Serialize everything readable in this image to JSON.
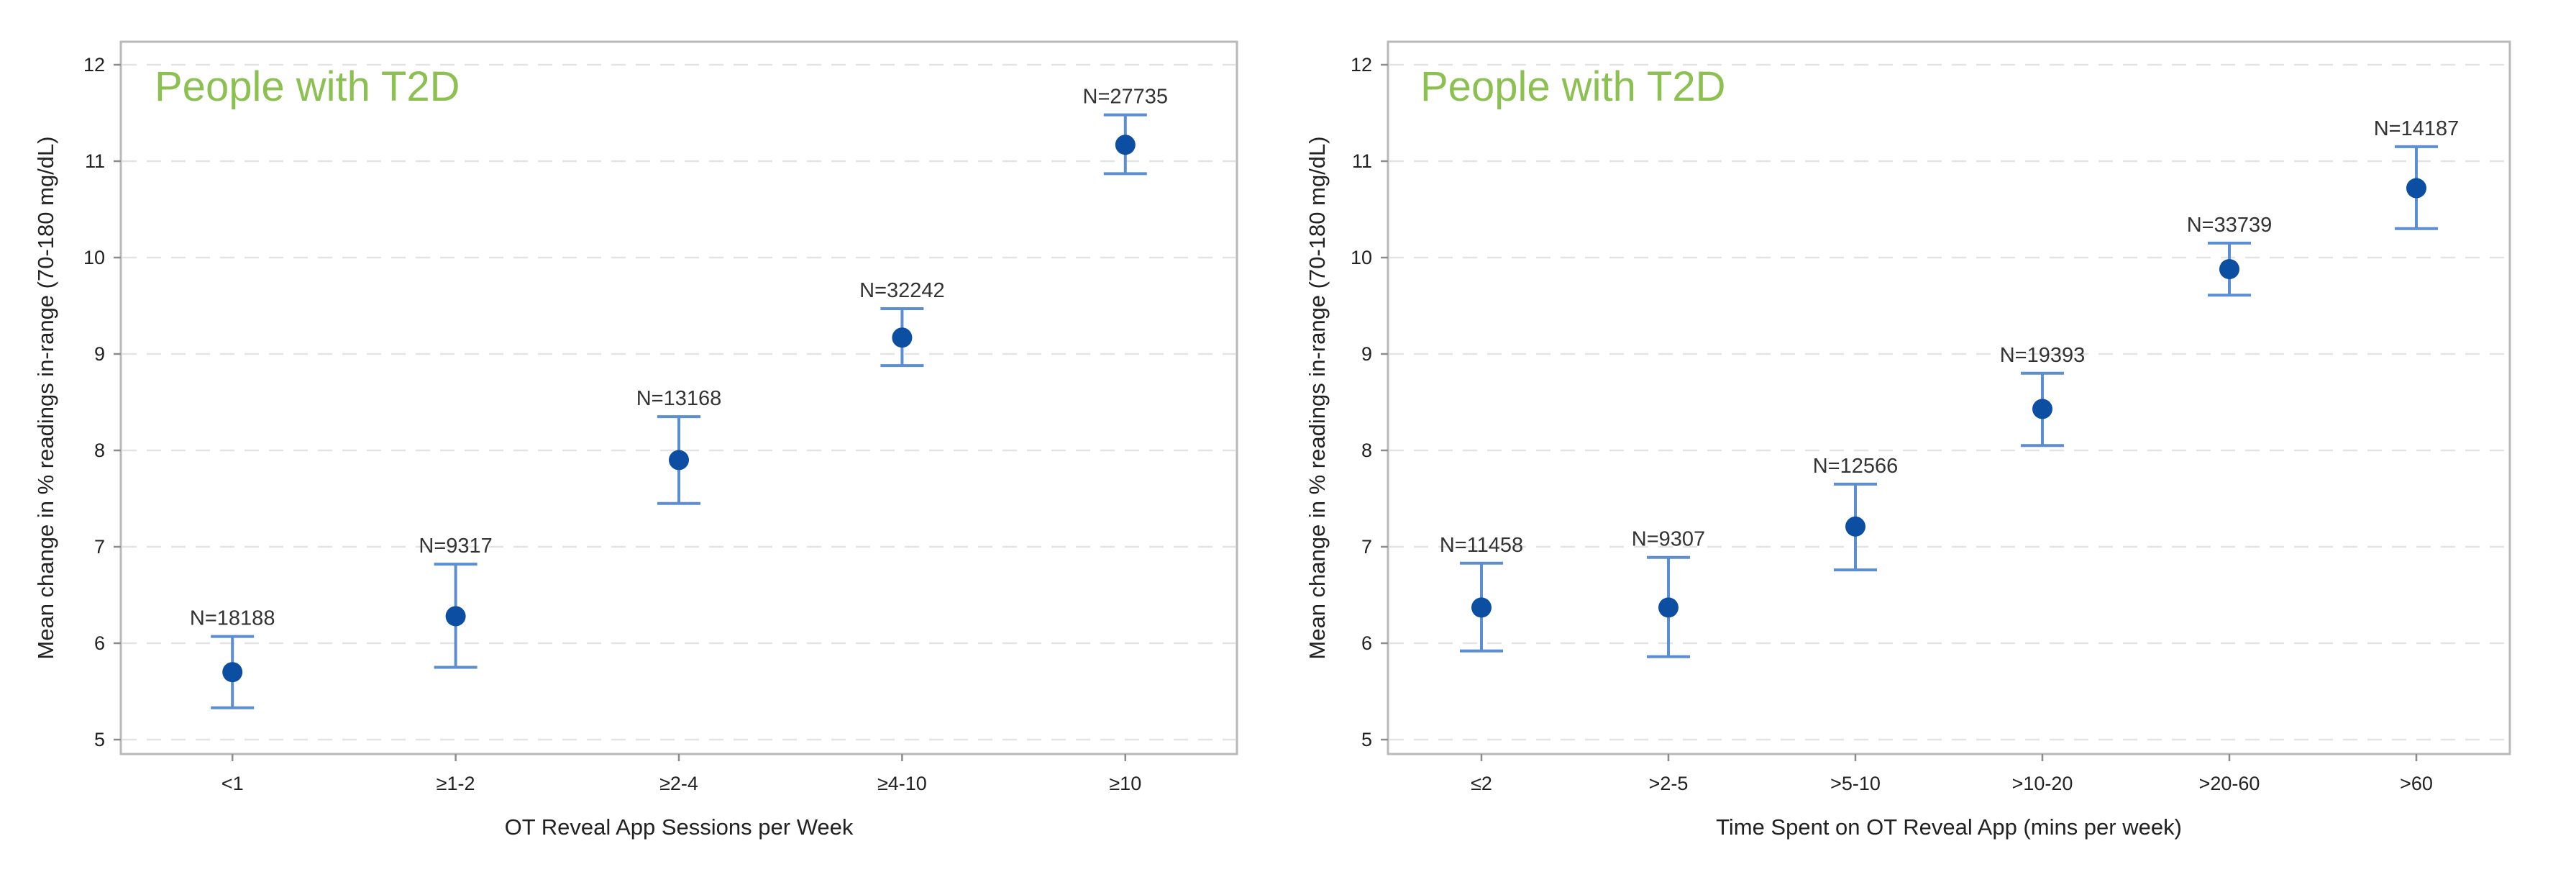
{
  "colors": {
    "marker": "#0b4ea2",
    "errorbar": "#5b8ed2",
    "subtitle": "#8cc152"
  },
  "chart_data": [
    {
      "type": "scatter",
      "title": "",
      "subtitle": "People with T2D",
      "xlabel": "OT Reveal App Sessions per Week",
      "ylabel": "Mean change in % readings in-range (70-180 mg/dL)",
      "ylim": [
        5,
        12
      ],
      "yticks": [
        5,
        6,
        7,
        8,
        9,
        10,
        11,
        12
      ],
      "categories": [
        "<1",
        "≥1-2",
        "≥2-4",
        "≥4-10",
        "≥10"
      ],
      "means": [
        5.7,
        6.28,
        7.9,
        9.17,
        11.17
      ],
      "lower": [
        5.33,
        5.75,
        7.45,
        8.88,
        10.87
      ],
      "upper": [
        6.07,
        6.82,
        8.35,
        9.47,
        11.48
      ],
      "labels": [
        "N=18188",
        "N=9317",
        "N=13168",
        "N=32242",
        "N=27735"
      ]
    },
    {
      "type": "scatter",
      "title": "",
      "subtitle": "People with T2D",
      "xlabel": "Time Spent on OT Reveal App (mins per week)",
      "ylabel": "Mean change in % readings in-range (70-180 mg/dL)",
      "ylim": [
        5,
        12
      ],
      "yticks": [
        5,
        6,
        7,
        8,
        9,
        10,
        11,
        12
      ],
      "categories": [
        "≤2",
        ">2-5",
        ">5-10",
        ">10-20",
        ">20-60",
        ">60"
      ],
      "means": [
        6.37,
        6.37,
        7.21,
        8.43,
        9.88,
        10.72
      ],
      "lower": [
        5.92,
        5.86,
        6.76,
        8.05,
        9.61,
        10.3
      ],
      "upper": [
        6.83,
        6.89,
        7.65,
        8.8,
        10.15,
        11.15
      ],
      "labels": [
        "N=11458",
        "N=9307",
        "N=12566",
        "N=19393",
        "N=33739",
        "N=14187"
      ]
    }
  ]
}
